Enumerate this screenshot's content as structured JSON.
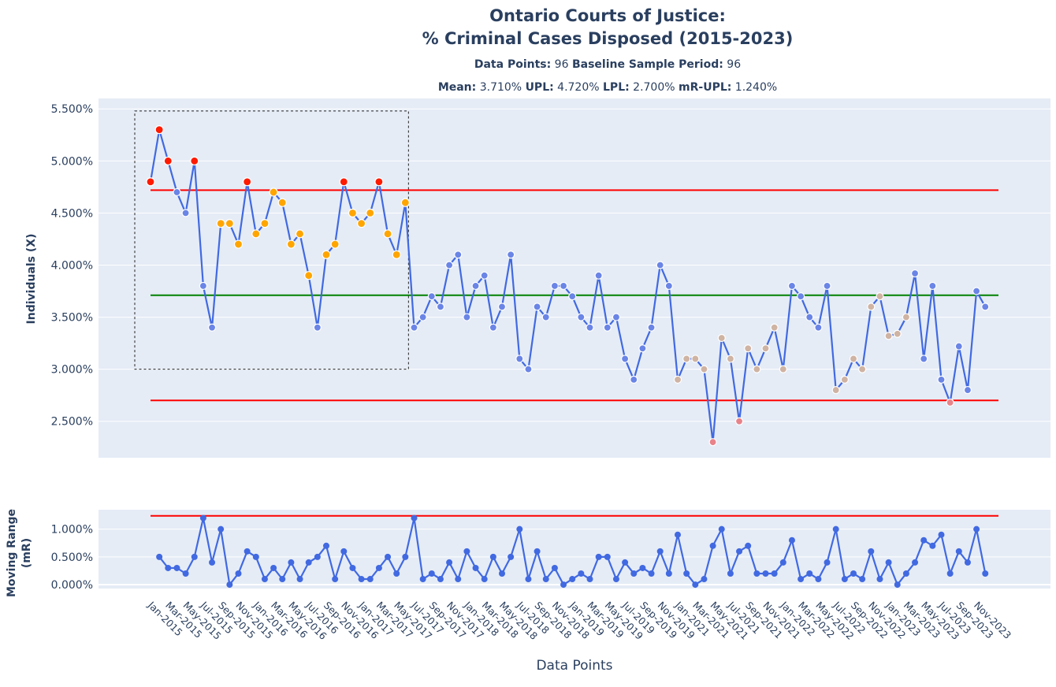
{
  "chart_data": [
    {
      "type": "line",
      "title_line1": "Ontario Courts of Justice:",
      "title_line2": "% Criminal Cases Disposed (2015-2023)",
      "stats_line1": [
        {
          "label": "Data Points:",
          "value": "96"
        },
        {
          "label": "Baseline Sample Period:",
          "value": "96"
        }
      ],
      "stats_line2": [
        {
          "label": "Mean:",
          "value": "3.710%"
        },
        {
          "label": "UPL:",
          "value": "4.720%"
        },
        {
          "label": "LPL:",
          "value": "2.700%"
        },
        {
          "label": "mR-UPL:",
          "value": "1.240%"
        }
      ],
      "ylabel": "Individuals (X)",
      "xlabel": "Data Points",
      "ylim": [
        2.15,
        5.6
      ],
      "y_ticks": [
        "5.500%",
        "5.000%",
        "4.500%",
        "4.000%",
        "3.500%",
        "3.000%",
        "2.500%"
      ],
      "y_tick_values": [
        5.5,
        5.0,
        4.5,
        4.0,
        3.5,
        3.0,
        2.5
      ],
      "mean": 3.71,
      "upl": 4.72,
      "lpl": 2.7,
      "highlight_box": {
        "x_start": "Jan-2015",
        "x_end": "May-2017",
        "y_low": 3.0,
        "y_high": 5.48
      },
      "values": [
        4.8,
        5.3,
        5.0,
        4.7,
        4.5,
        5.0,
        3.8,
        3.4,
        4.4,
        4.4,
        4.2,
        4.8,
        4.3,
        4.4,
        4.7,
        4.6,
        4.2,
        4.3,
        3.9,
        3.4,
        4.1,
        4.2,
        4.8,
        4.5,
        4.4,
        4.5,
        4.8,
        4.3,
        4.1,
        4.6,
        3.4,
        3.5,
        3.7,
        3.6,
        4.0,
        4.1,
        3.5,
        3.8,
        3.9,
        3.4,
        3.6,
        4.1,
        3.1,
        3.0,
        3.6,
        3.5,
        3.8,
        3.8,
        3.7,
        3.5,
        3.4,
        3.9,
        3.4,
        3.5,
        3.1,
        2.9,
        3.2,
        3.4,
        4.0,
        3.8,
        2.9,
        3.1,
        3.1,
        3.0,
        2.3,
        3.3,
        3.1,
        2.5,
        3.2,
        3.0,
        3.2,
        3.4,
        3.0,
        3.8,
        3.7,
        3.5,
        3.4,
        3.8,
        2.8,
        2.9,
        3.1,
        3.0,
        3.6,
        3.7,
        3.32,
        3.34,
        3.5,
        3.92,
        3.1,
        3.8,
        2.9,
        2.68,
        3.22,
        2.8,
        3.75,
        3.6
      ],
      "marker_colors": {
        "default": "#6a85e6",
        "above_upl": "#ff1a00",
        "run_above": "#ffa500",
        "run_below": "#cfb3a3",
        "below_lpl": "#e8838a",
        "line": "#4169e1",
        "mean": "#008000",
        "limit": "#ff0000"
      }
    },
    {
      "type": "line",
      "ylabel_line1": "Moving Range",
      "ylabel_line2": "(mR)",
      "ylim": [
        -0.07,
        1.35
      ],
      "y_ticks": [
        "1.000%",
        "0.500%",
        "0.000%"
      ],
      "y_tick_values": [
        1.0,
        0.5,
        0.0
      ],
      "upl": 1.24,
      "values": [
        0.5,
        0.3,
        0.3,
        0.2,
        0.5,
        1.2,
        0.4,
        1.0,
        0.0,
        0.2,
        0.6,
        0.5,
        0.1,
        0.3,
        0.1,
        0.4,
        0.1,
        0.4,
        0.5,
        0.7,
        0.1,
        0.6,
        0.3,
        0.1,
        0.1,
        0.3,
        0.5,
        0.2,
        0.5,
        1.2,
        0.1,
        0.2,
        0.1,
        0.4,
        0.1,
        0.6,
        0.3,
        0.1,
        0.5,
        0.2,
        0.5,
        1.0,
        0.1,
        0.6,
        0.1,
        0.3,
        0.0,
        0.1,
        0.2,
        0.1,
        0.5,
        0.5,
        0.1,
        0.4,
        0.2,
        0.3,
        0.2,
        0.6,
        0.2,
        0.9,
        0.2,
        0.0,
        0.1,
        0.7,
        1.0,
        0.2,
        0.6,
        0.7,
        0.2,
        0.2,
        0.2,
        0.4,
        0.8,
        0.1,
        0.2,
        0.1,
        0.4,
        1.0,
        0.1,
        0.2,
        0.1,
        0.6,
        0.1,
        0.4,
        0.0,
        0.2,
        0.4,
        0.8,
        0.7,
        0.9,
        0.2,
        0.6,
        0.4,
        1.0,
        0.2
      ]
    }
  ],
  "x_tick_labels": [
    "Jan-2015",
    "Mar-2015",
    "May-2015",
    "Jul-2015",
    "Sep-2015",
    "Nov-2015",
    "Jan-2016",
    "Mar-2016",
    "May-2016",
    "Jul-2016",
    "Sep-2016",
    "Nov-2016",
    "Jan-2017",
    "Mar-2017",
    "May-2017",
    "Jul-2017",
    "Sep-2017",
    "Nov-2017",
    "Jan-2018",
    "Mar-2018",
    "May-2018",
    "Jul-2018",
    "Sep-2018",
    "Nov-2018",
    "Jan-2019",
    "Mar-2019",
    "May-2019",
    "Jul-2019",
    "Sep-2019",
    "Nov-2019",
    "Jan-2021",
    "Mar-2021",
    "May-2021",
    "Jul-2021",
    "Sep-2021",
    "Nov-2021",
    "Jan-2022",
    "Mar-2022",
    "May-2022",
    "Jul-2022",
    "Sep-2022",
    "Nov-2022",
    "Jan-2023",
    "Mar-2023",
    "May-2023",
    "Jul-2023",
    "Sep-2023",
    "Nov-2023"
  ]
}
